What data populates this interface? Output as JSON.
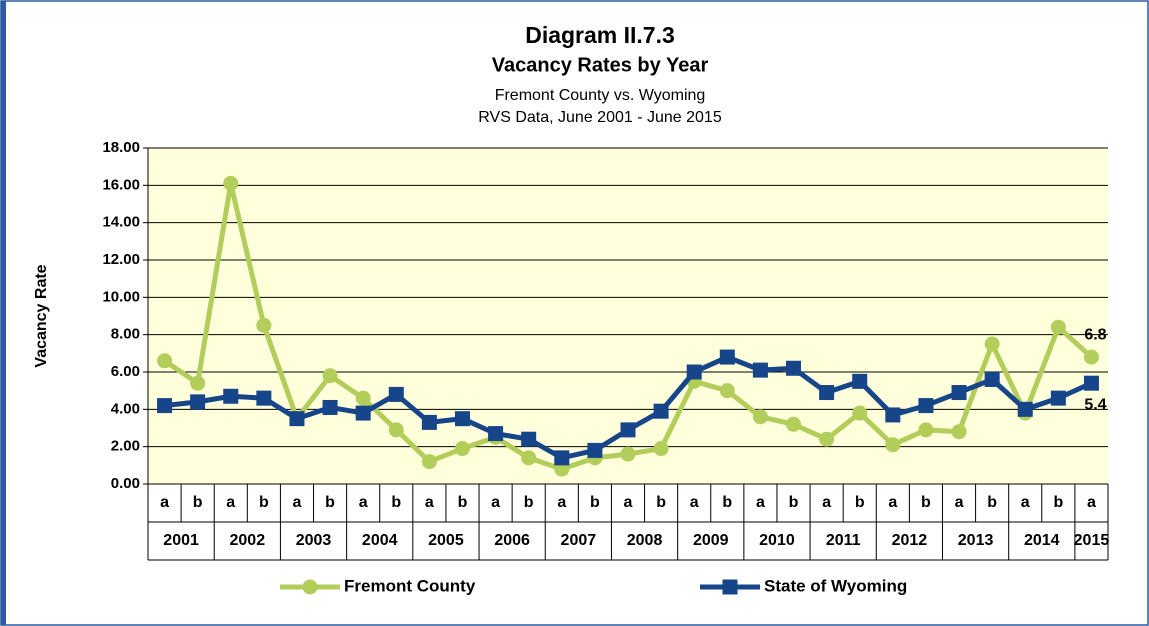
{
  "chart_data": {
    "type": "line",
    "title": "Diagram II.7.3",
    "subtitle": "Vacancy Rates by Year",
    "subtitle2": "Fremont County vs. Wyoming",
    "subtitle3": "RVS Data, June 2001 - June 2015",
    "y_label": "Vacancy Rate",
    "categories": [
      "a",
      "b",
      "a",
      "b",
      "a",
      "b",
      "a",
      "b",
      "a",
      "b",
      "a",
      "b",
      "a",
      "b",
      "a",
      "b",
      "a",
      "b",
      "a",
      "b",
      "a",
      "b",
      "a",
      "b",
      "a",
      "b",
      "a",
      "b",
      "a"
    ],
    "years": [
      "2001",
      "2002",
      "2003",
      "2004",
      "2005",
      "2006",
      "2007",
      "2008",
      "2009",
      "2010",
      "2011",
      "2012",
      "2013",
      "2014",
      "2015"
    ],
    "series": [
      {
        "name": "Fremont County",
        "color": "#b2cd5a",
        "marker": "circle",
        "values": [
          6.6,
          5.4,
          16.1,
          8.5,
          3.5,
          5.8,
          4.6,
          2.9,
          1.2,
          1.9,
          2.5,
          1.4,
          0.8,
          1.4,
          1.6,
          1.9,
          5.5,
          5.0,
          3.6,
          3.2,
          2.4,
          3.8,
          2.1,
          2.9,
          2.8,
          7.5,
          3.8,
          8.4,
          6.8
        ]
      },
      {
        "name": "State of Wyoming",
        "color": "#17458a",
        "marker": "square",
        "values": [
          4.2,
          4.4,
          4.7,
          4.6,
          3.5,
          4.1,
          3.8,
          4.8,
          3.3,
          3.5,
          2.7,
          2.4,
          1.4,
          1.8,
          2.9,
          3.9,
          6.0,
          6.8,
          6.1,
          6.2,
          4.9,
          5.5,
          3.7,
          4.2,
          4.9,
          5.6,
          4.0,
          4.6,
          5.4
        ]
      }
    ],
    "data_label": "last",
    "ylim": [
      0,
      18
    ],
    "yticks": [
      {
        "value": 0,
        "label": "0.00"
      },
      {
        "value": 2,
        "label": "2.00"
      },
      {
        "value": 4,
        "label": "4.00"
      },
      {
        "value": 6,
        "label": "6.00"
      },
      {
        "value": 8,
        "label": "8.00"
      },
      {
        "value": 10,
        "label": "10.00"
      },
      {
        "value": 12,
        "label": "12.00"
      },
      {
        "value": 14,
        "label": "14.00"
      },
      {
        "value": 16,
        "label": "16.00"
      },
      {
        "value": 18,
        "label": "18.00"
      }
    ],
    "grid": true,
    "legend": "bottom"
  }
}
